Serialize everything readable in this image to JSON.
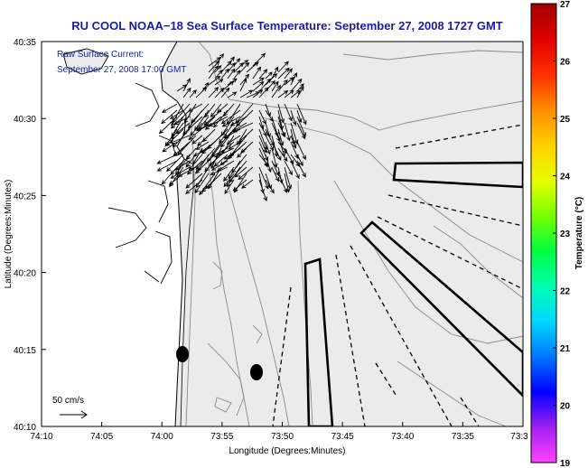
{
  "title": "RU COOL  NOAA−18  Sea Surface Temperature:  September 27, 2008 1727 GMT",
  "current_label": {
    "line1": "Raw Surface Current:",
    "line2": "September 27, 2008 17:00 GMT"
  },
  "axes": {
    "xlabel": "Longitude (Degrees:Minutes)",
    "ylabel": "Latitude (Degrees:Minutes)",
    "x_ticks": [
      "74:10",
      "74:05",
      "74:00",
      "73:55",
      "73:50",
      "73:45",
      "73:40",
      "73:35",
      "73:3"
    ],
    "y_ticks": [
      "40:35",
      "40:30",
      "40:25",
      "40:20",
      "40:15",
      "40:10"
    ]
  },
  "scale_label": "50 cm/s",
  "colorbar": {
    "label": "Temperature (°C)",
    "ticks": [
      "27",
      "26",
      "25",
      "24",
      "23",
      "22",
      "21",
      "20",
      "19"
    ],
    "stops": [
      "#ff44ff",
      "#a020f0",
      "#0000ff",
      "#0078ff",
      "#00d8ff",
      "#00ffb0",
      "#00ff40",
      "#78ff00",
      "#e8ff00",
      "#ffd000",
      "#ff8c00",
      "#ff3000",
      "#e00000",
      "#a00000"
    ]
  },
  "colors": {
    "title": "#1a1aa8",
    "annotation": "#1a1aa8",
    "land": "#ffffff",
    "water": "#ebebeb",
    "contour": "#8a8a8a"
  }
}
